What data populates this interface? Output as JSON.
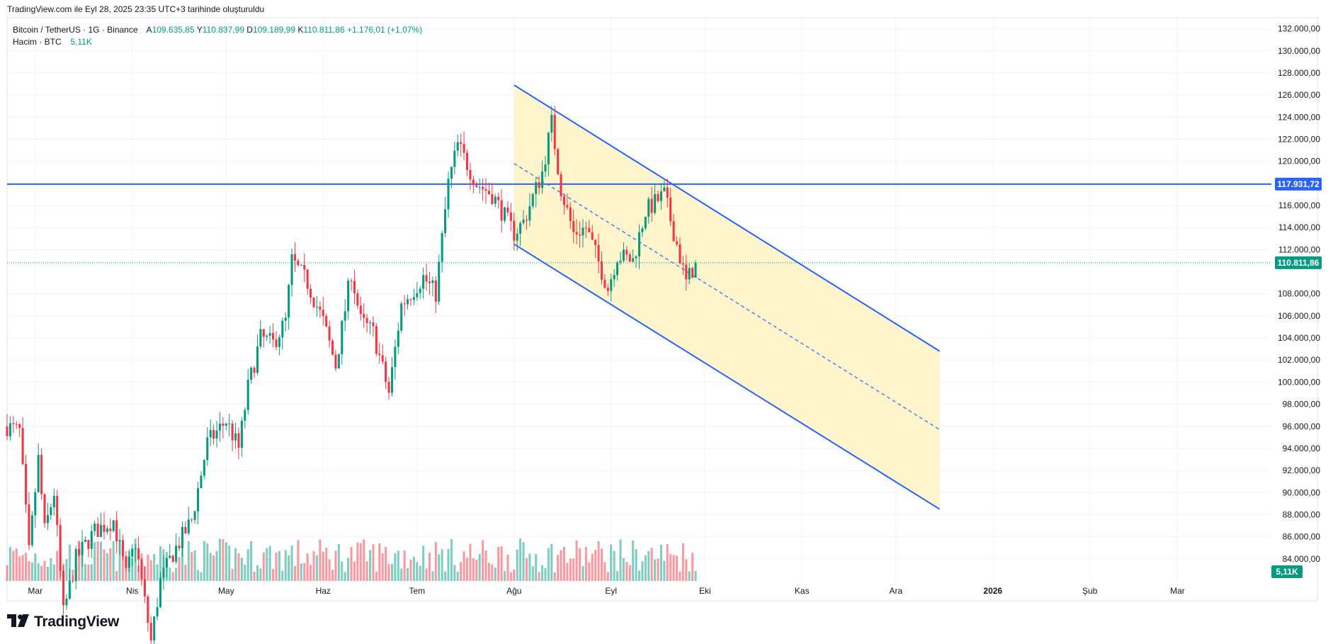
{
  "caption": "TradingView.com ile Eyl 28, 2025 23:35 UTC+3 tarihinde oluşturuldu",
  "legend": {
    "symbol": "Bitcoin / TetherUS · 1G · Binance",
    "open_label": "A",
    "open": "109.635,85",
    "high_label": "Y",
    "high": "110.837,99",
    "low_label": "D",
    "low": "109.189,99",
    "close_label": "K",
    "close": "110.811,86",
    "change": "+1.176,01 (+1,07%)",
    "volume_label": "Hacim · BTC",
    "volume": "5,11K"
  },
  "brand": {
    "name": "TradingView",
    "icon": "tradingview-logo-icon"
  },
  "colors": {
    "up": "#089981",
    "down": "#F23645",
    "line": "#2962FF",
    "fill": "#FFF3C4"
  },
  "chart_data": {
    "type": "candlestick",
    "ylim": [
      82000,
      133000
    ],
    "y_ticks": [
      "132.000,00",
      "130.000,00",
      "128.000,00",
      "126.000,00",
      "124.000,00",
      "122.000,00",
      "120.000,00",
      "116.000,00",
      "114.000,00",
      "112.000,00",
      "108.000,00",
      "106.000,00",
      "104.000,00",
      "102.000,00",
      "100.000,00",
      "98.000,00",
      "96.000,00",
      "94.000,00",
      "92.000,00",
      "90.000,00",
      "88.000,00",
      "86.000,00",
      "84.000,00"
    ],
    "y_tick_values": [
      132000,
      130000,
      128000,
      126000,
      124000,
      122000,
      120000,
      116000,
      114000,
      112000,
      108000,
      106000,
      104000,
      102000,
      100000,
      98000,
      96000,
      94000,
      92000,
      90000,
      88000,
      86000,
      84000
    ],
    "x_range": [
      "2025-02-20",
      "2026-03-31"
    ],
    "x_ticks": [
      {
        "label": "Mar",
        "date": "2025-03-01",
        "bold": false
      },
      {
        "label": "Nis",
        "date": "2025-04-01",
        "bold": false
      },
      {
        "label": "May",
        "date": "2025-05-01",
        "bold": false
      },
      {
        "label": "Haz",
        "date": "2025-06-01",
        "bold": false
      },
      {
        "label": "Tem",
        "date": "2025-07-01",
        "bold": false
      },
      {
        "label": "Ağu",
        "date": "2025-08-01",
        "bold": false
      },
      {
        "label": "Eyl",
        "date": "2025-09-01",
        "bold": false
      },
      {
        "label": "Eki",
        "date": "2025-10-01",
        "bold": false
      },
      {
        "label": "Kas",
        "date": "2025-11-01",
        "bold": false
      },
      {
        "label": "Ara",
        "date": "2025-12-01",
        "bold": false
      },
      {
        "label": "2026",
        "date": "2026-01-01",
        "bold": true
      },
      {
        "label": "Şub",
        "date": "2026-02-01",
        "bold": false
      },
      {
        "label": "Mar",
        "date": "2026-03-01",
        "bold": false
      }
    ],
    "horizontal_line": {
      "value": 117931.72,
      "label": "117.931,72"
    },
    "last_price": {
      "value": 110811.86,
      "label": "110.811,86"
    },
    "volume_label": "5,11K",
    "channel": {
      "start": "2025-08-01",
      "end": "2025-12-15",
      "upper": [
        126900,
        102800
      ],
      "lower": [
        112500,
        88500
      ],
      "middle": [
        119800,
        95700
      ]
    },
    "anchors": [
      [
        "2025-02-20",
        96000
      ],
      [
        "2025-02-24",
        95500
      ],
      [
        "2025-02-27",
        84500
      ],
      [
        "2025-03-02",
        93000
      ],
      [
        "2025-03-04",
        86500
      ],
      [
        "2025-03-07",
        90000
      ],
      [
        "2025-03-10",
        79000
      ],
      [
        "2025-03-14",
        84000
      ],
      [
        "2025-03-20",
        86500
      ],
      [
        "2025-03-26",
        87500
      ],
      [
        "2025-03-30",
        82500
      ],
      [
        "2025-04-02",
        85500
      ],
      [
        "2025-04-07",
        76500
      ],
      [
        "2025-04-10",
        82000
      ],
      [
        "2025-04-14",
        84500
      ],
      [
        "2025-04-20",
        87500
      ],
      [
        "2025-04-25",
        94500
      ],
      [
        "2025-05-01",
        96500
      ],
      [
        "2025-05-05",
        94000
      ],
      [
        "2025-05-08",
        99500
      ],
      [
        "2025-05-12",
        104000
      ],
      [
        "2025-05-16",
        103500
      ],
      [
        "2025-05-20",
        105500
      ],
      [
        "2025-05-22",
        111000
      ],
      [
        "2025-05-27",
        109000
      ],
      [
        "2025-06-01",
        105500
      ],
      [
        "2025-06-05",
        101500
      ],
      [
        "2025-06-10",
        110000
      ],
      [
        "2025-06-13",
        105500
      ],
      [
        "2025-06-17",
        104500
      ],
      [
        "2025-06-22",
        99000
      ],
      [
        "2025-06-26",
        107000
      ],
      [
        "2025-07-03",
        109500
      ],
      [
        "2025-07-07",
        108000
      ],
      [
        "2025-07-11",
        118000
      ],
      [
        "2025-07-14",
        121500
      ],
      [
        "2025-07-20",
        118000
      ],
      [
        "2025-07-25",
        117000
      ],
      [
        "2025-08-01",
        113500
      ],
      [
        "2025-08-04",
        114500
      ],
      [
        "2025-08-10",
        119000
      ],
      [
        "2025-08-13",
        123500
      ],
      [
        "2025-08-16",
        117500
      ],
      [
        "2025-08-20",
        113500
      ],
      [
        "2025-08-24",
        114000
      ],
      [
        "2025-08-31",
        108500
      ],
      [
        "2025-09-03",
        111500
      ],
      [
        "2025-09-08",
        111000
      ],
      [
        "2025-09-12",
        115500
      ],
      [
        "2025-09-18",
        117000
      ],
      [
        "2025-09-22",
        112500
      ],
      [
        "2025-09-25",
        109000
      ],
      [
        "2025-09-28",
        110811.86
      ]
    ],
    "first_date": "2025-02-20",
    "last_date": "2025-09-28"
  }
}
